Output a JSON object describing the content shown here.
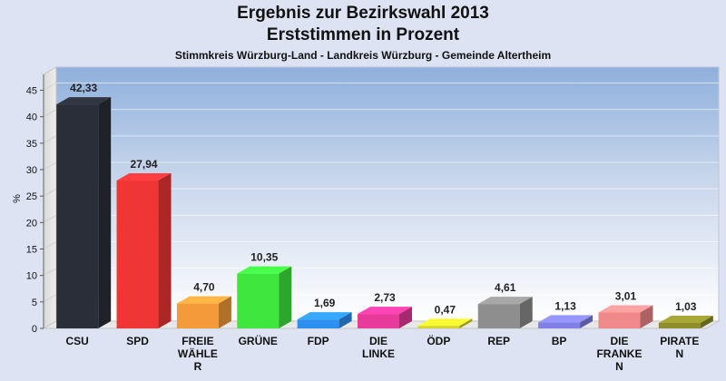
{
  "title": "Ergebnis zur Bezirkswahl 2013",
  "subtitle": "Erststimmen in Prozent",
  "caption": "Stimmkreis Würzburg-Land - Landkreis Würzburg - Gemeinde Altertheim",
  "chart_data": {
    "type": "bar",
    "title": "Ergebnis zur Bezirkswahl 2013",
    "subtitle": "Erststimmen in Prozent",
    "ylabel": "%",
    "xlabel": "",
    "ylim": [
      0,
      48
    ],
    "yticks": [
      0,
      5,
      10,
      15,
      20,
      25,
      30,
      35,
      40,
      45
    ],
    "categories": [
      "CSU",
      "SPD",
      "FREIE WÄHLER",
      "GRÜNE",
      "FDP",
      "DIE LINKE",
      "ÖDP",
      "REP",
      "BP",
      "DIE FRANKEN",
      "PIRATEN"
    ],
    "category_display": [
      [
        "CSU"
      ],
      [
        "SPD"
      ],
      [
        "FREIE",
        "WÄHLE",
        "R"
      ],
      [
        "GRÜNE"
      ],
      [
        "FDP"
      ],
      [
        "DIE",
        "LINKE"
      ],
      [
        "ÖDP"
      ],
      [
        "REP"
      ],
      [
        "BP"
      ],
      [
        "DIE",
        "FRANKE",
        "N"
      ],
      [
        "PIRATE",
        "N"
      ]
    ],
    "values": [
      42.33,
      27.94,
      4.7,
      10.35,
      1.69,
      2.73,
      0.47,
      4.61,
      1.13,
      3.01,
      1.03
    ],
    "value_labels": [
      "42,33",
      "27,94",
      "4,70",
      "10,35",
      "1,69",
      "2,73",
      "0,47",
      "4,61",
      "1,13",
      "3,01",
      "1,03"
    ],
    "colors": [
      "#2a2e38",
      "#f03535",
      "#f59a3a",
      "#3ee63e",
      "#2e8ff0",
      "#e83a9a",
      "#d4d42a",
      "#8e8e8e",
      "#8080e6",
      "#f08a8a",
      "#8e8e2e"
    ],
    "grid": true,
    "legend": "none"
  }
}
